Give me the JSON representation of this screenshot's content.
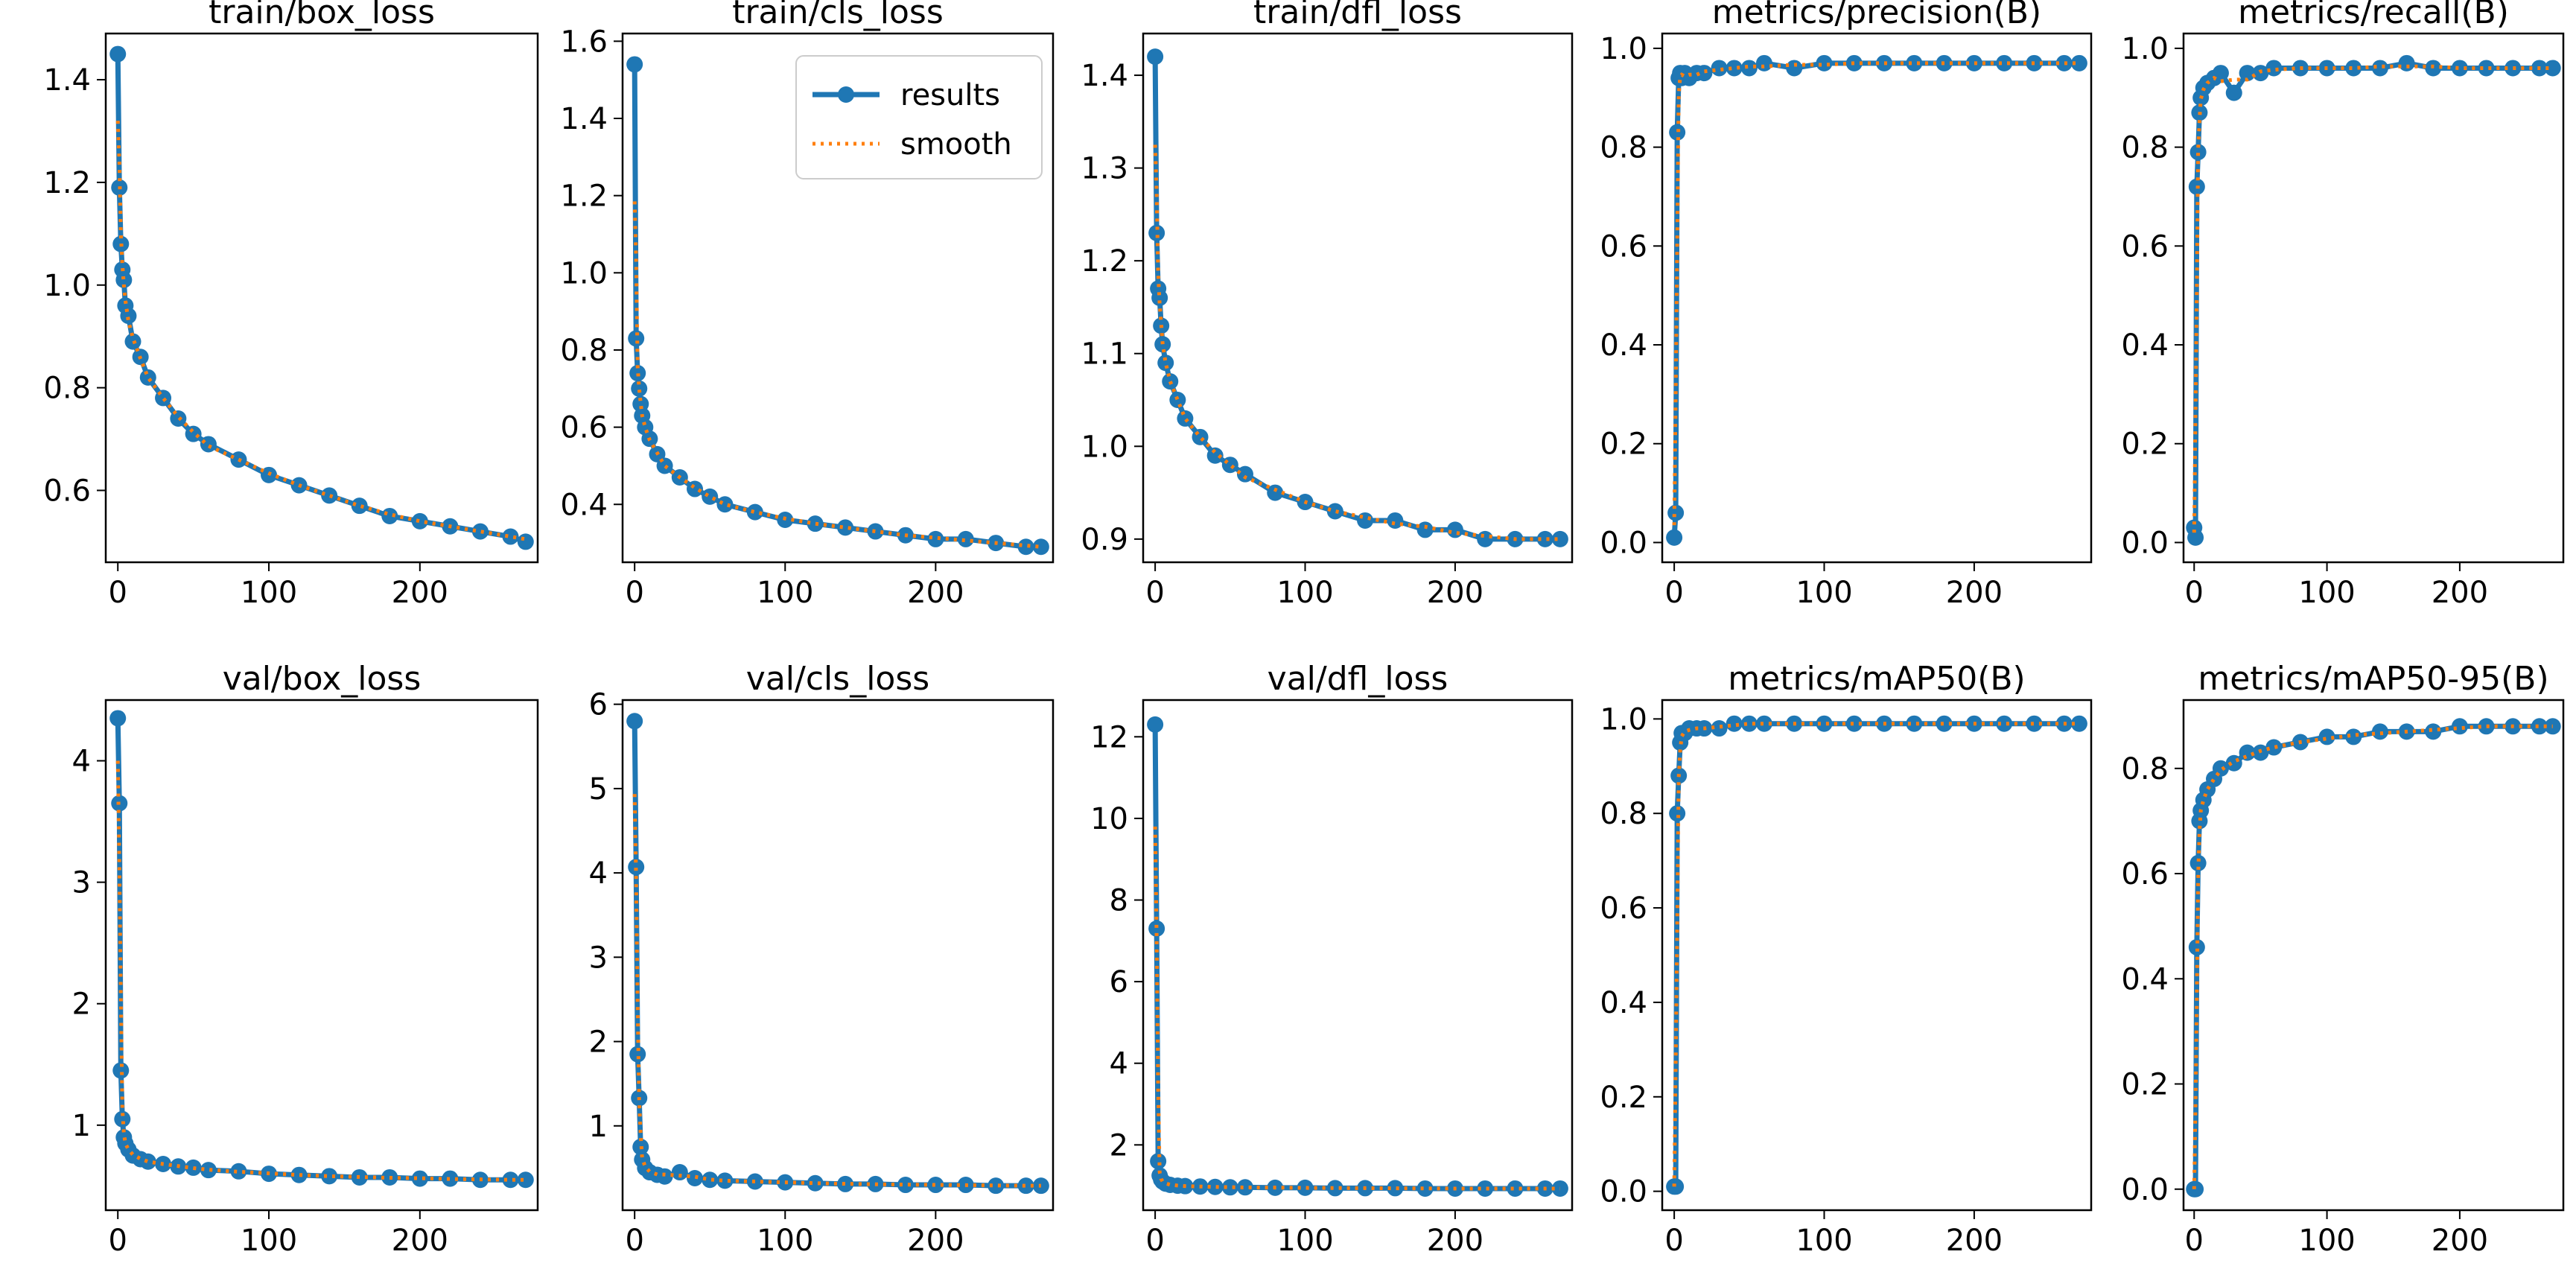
{
  "figure": {
    "rows": 2,
    "cols": 5
  },
  "colors": {
    "results": "#1f77b4",
    "smooth": "#ff7f0e",
    "axes": "#000000",
    "background": "#ffffff"
  },
  "legend": {
    "placement": "top-right",
    "panel_index": 1,
    "entries": [
      {
        "label": "results",
        "style": "solid line with dot markers"
      },
      {
        "label": "smooth",
        "style": "dotted line"
      }
    ]
  },
  "chart_data": [
    {
      "type": "line",
      "title": "train/box_loss",
      "xlabel": "",
      "ylabel": "",
      "xlim": [
        -8,
        278
      ],
      "ylim": [
        0.46,
        1.49
      ],
      "xticks": [
        0,
        100,
        200
      ],
      "yticks": [
        0.6,
        0.8,
        1.0,
        1.2,
        1.4
      ],
      "x": [
        0,
        1,
        2,
        3,
        4,
        5,
        7,
        10,
        15,
        20,
        30,
        40,
        50,
        60,
        80,
        100,
        120,
        140,
        160,
        180,
        200,
        220,
        240,
        260,
        270
      ],
      "series": [
        {
          "name": "results",
          "values": [
            1.45,
            1.19,
            1.08,
            1.03,
            1.01,
            0.96,
            0.94,
            0.89,
            0.86,
            0.82,
            0.78,
            0.74,
            0.71,
            0.69,
            0.66,
            0.63,
            0.61,
            0.59,
            0.57,
            0.55,
            0.54,
            0.53,
            0.52,
            0.51,
            0.5
          ]
        }
      ]
    },
    {
      "type": "line",
      "title": "train/cls_loss",
      "xlabel": "",
      "ylabel": "",
      "xlim": [
        -8,
        278
      ],
      "ylim": [
        0.25,
        1.62
      ],
      "xticks": [
        0,
        100,
        200
      ],
      "yticks": [
        0.4,
        0.6,
        0.8,
        1.0,
        1.2,
        1.4,
        1.6
      ],
      "x": [
        0,
        1,
        2,
        3,
        4,
        5,
        7,
        10,
        15,
        20,
        30,
        40,
        50,
        60,
        80,
        100,
        120,
        140,
        160,
        180,
        200,
        220,
        240,
        260,
        270
      ],
      "series": [
        {
          "name": "results",
          "values": [
            1.54,
            0.83,
            0.74,
            0.7,
            0.66,
            0.63,
            0.6,
            0.57,
            0.53,
            0.5,
            0.47,
            0.44,
            0.42,
            0.4,
            0.38,
            0.36,
            0.35,
            0.34,
            0.33,
            0.32,
            0.31,
            0.31,
            0.3,
            0.29,
            0.29
          ]
        }
      ]
    },
    {
      "type": "line",
      "title": "train/dfl_loss",
      "xlabel": "",
      "ylabel": "",
      "xlim": [
        -8,
        278
      ],
      "ylim": [
        0.875,
        1.445
      ],
      "xticks": [
        0,
        100,
        200
      ],
      "yticks": [
        0.9,
        1.0,
        1.1,
        1.2,
        1.3,
        1.4
      ],
      "x": [
        0,
        1,
        2,
        3,
        4,
        5,
        7,
        10,
        15,
        20,
        30,
        40,
        50,
        60,
        80,
        100,
        120,
        140,
        160,
        180,
        200,
        220,
        240,
        260,
        270
      ],
      "series": [
        {
          "name": "results",
          "values": [
            1.42,
            1.23,
            1.17,
            1.16,
            1.13,
            1.11,
            1.09,
            1.07,
            1.05,
            1.03,
            1.01,
            0.99,
            0.98,
            0.97,
            0.95,
            0.94,
            0.93,
            0.92,
            0.92,
            0.91,
            0.91,
            0.9,
            0.9,
            0.9,
            0.9
          ]
        }
      ]
    },
    {
      "type": "line",
      "title": "metrics/precision(B)",
      "xlabel": "",
      "ylabel": "",
      "xlim": [
        -8,
        278
      ],
      "ylim": [
        -0.04,
        1.03
      ],
      "xticks": [
        0,
        100,
        200
      ],
      "yticks": [
        0.0,
        0.2,
        0.4,
        0.6,
        0.8,
        1.0
      ],
      "x": [
        0,
        1,
        2,
        3,
        4,
        5,
        7,
        10,
        15,
        20,
        30,
        40,
        50,
        60,
        80,
        100,
        120,
        140,
        160,
        180,
        200,
        220,
        240,
        260,
        270
      ],
      "series": [
        {
          "name": "results",
          "values": [
            0.01,
            0.06,
            0.83,
            0.94,
            0.95,
            0.94,
            0.95,
            0.94,
            0.95,
            0.95,
            0.96,
            0.96,
            0.96,
            0.97,
            0.96,
            0.97,
            0.97,
            0.97,
            0.97,
            0.97,
            0.97,
            0.97,
            0.97,
            0.97,
            0.97
          ]
        }
      ]
    },
    {
      "type": "line",
      "title": "metrics/recall(B)",
      "xlabel": "",
      "ylabel": "",
      "xlim": [
        -8,
        278
      ],
      "ylim": [
        -0.04,
        1.03
      ],
      "xticks": [
        0,
        100,
        200
      ],
      "yticks": [
        0.0,
        0.2,
        0.4,
        0.6,
        0.8,
        1.0
      ],
      "x": [
        0,
        1,
        2,
        3,
        4,
        5,
        7,
        10,
        15,
        20,
        30,
        40,
        50,
        60,
        80,
        100,
        120,
        140,
        160,
        180,
        200,
        220,
        240,
        260,
        270
      ],
      "series": [
        {
          "name": "results",
          "values": [
            0.03,
            0.01,
            0.72,
            0.79,
            0.87,
            0.9,
            0.92,
            0.93,
            0.94,
            0.95,
            0.91,
            0.95,
            0.95,
            0.96,
            0.96,
            0.96,
            0.96,
            0.96,
            0.97,
            0.96,
            0.96,
            0.96,
            0.96,
            0.96,
            0.96
          ]
        }
      ]
    },
    {
      "type": "line",
      "title": "val/box_loss",
      "xlabel": "",
      "ylabel": "",
      "xlim": [
        -8,
        278
      ],
      "ylim": [
        0.3,
        4.5
      ],
      "xticks": [
        0,
        100,
        200
      ],
      "yticks": [
        1,
        2,
        3,
        4
      ],
      "x": [
        0,
        1,
        2,
        3,
        4,
        5,
        7,
        10,
        15,
        20,
        30,
        40,
        50,
        60,
        80,
        100,
        120,
        140,
        160,
        180,
        200,
        220,
        240,
        260,
        270
      ],
      "series": [
        {
          "name": "results",
          "values": [
            4.35,
            3.65,
            1.45,
            1.05,
            0.9,
            0.85,
            0.8,
            0.75,
            0.72,
            0.7,
            0.68,
            0.66,
            0.65,
            0.63,
            0.62,
            0.6,
            0.59,
            0.58,
            0.57,
            0.57,
            0.56,
            0.56,
            0.55,
            0.55,
            0.55
          ]
        }
      ]
    },
    {
      "type": "line",
      "title": "val/cls_loss",
      "xlabel": "",
      "ylabel": "",
      "xlim": [
        -8,
        278
      ],
      "ylim": [
        0.0,
        6.05
      ],
      "xticks": [
        0,
        100,
        200
      ],
      "yticks": [
        1,
        2,
        3,
        4,
        5,
        6
      ],
      "x": [
        0,
        1,
        2,
        3,
        4,
        5,
        7,
        10,
        15,
        20,
        30,
        40,
        50,
        60,
        80,
        100,
        120,
        140,
        160,
        180,
        200,
        220,
        240,
        260,
        270
      ],
      "series": [
        {
          "name": "results",
          "values": [
            5.8,
            4.07,
            1.85,
            1.33,
            0.75,
            0.6,
            0.5,
            0.45,
            0.42,
            0.4,
            0.45,
            0.38,
            0.36,
            0.35,
            0.34,
            0.33,
            0.32,
            0.31,
            0.31,
            0.3,
            0.3,
            0.3,
            0.29,
            0.29,
            0.29
          ]
        }
      ]
    },
    {
      "type": "line",
      "title": "val/dfl_loss",
      "xlabel": "",
      "ylabel": "",
      "xlim": [
        -8,
        278
      ],
      "ylim": [
        0.4,
        12.9
      ],
      "xticks": [
        0,
        100,
        200
      ],
      "yticks": [
        2,
        4,
        6,
        8,
        10,
        12
      ],
      "x": [
        0,
        1,
        2,
        3,
        4,
        5,
        7,
        10,
        15,
        20,
        30,
        40,
        50,
        60,
        80,
        100,
        120,
        140,
        160,
        180,
        200,
        220,
        240,
        260,
        270
      ],
      "series": [
        {
          "name": "results",
          "values": [
            12.3,
            7.3,
            1.6,
            1.25,
            1.15,
            1.1,
            1.05,
            1.02,
            1.0,
            0.99,
            0.98,
            0.97,
            0.96,
            0.96,
            0.95,
            0.95,
            0.94,
            0.94,
            0.94,
            0.93,
            0.93,
            0.93,
            0.93,
            0.93,
            0.93
          ]
        }
      ]
    },
    {
      "type": "line",
      "title": "metrics/mAP50(B)",
      "xlabel": "",
      "ylabel": "",
      "xlim": [
        -8,
        278
      ],
      "ylim": [
        -0.04,
        1.04
      ],
      "xticks": [
        0,
        100,
        200
      ],
      "yticks": [
        0.0,
        0.2,
        0.4,
        0.6,
        0.8,
        1.0
      ],
      "x": [
        0,
        1,
        2,
        3,
        4,
        5,
        7,
        10,
        15,
        20,
        30,
        40,
        50,
        60,
        80,
        100,
        120,
        140,
        160,
        180,
        200,
        220,
        240,
        260,
        270
      ],
      "series": [
        {
          "name": "results",
          "values": [
            0.01,
            0.01,
            0.8,
            0.88,
            0.95,
            0.97,
            0.97,
            0.98,
            0.98,
            0.98,
            0.98,
            0.99,
            0.99,
            0.99,
            0.99,
            0.99,
            0.99,
            0.99,
            0.99,
            0.99,
            0.99,
            0.99,
            0.99,
            0.99,
            0.99
          ]
        }
      ]
    },
    {
      "type": "line",
      "title": "metrics/mAP50-95(B)",
      "xlabel": "",
      "ylabel": "",
      "xlim": [
        -8,
        278
      ],
      "ylim": [
        -0.04,
        0.93
      ],
      "xticks": [
        0,
        100,
        200
      ],
      "yticks": [
        0.0,
        0.2,
        0.4,
        0.6,
        0.8
      ],
      "x": [
        0,
        1,
        2,
        3,
        4,
        5,
        7,
        10,
        15,
        20,
        30,
        40,
        50,
        60,
        80,
        100,
        120,
        140,
        160,
        180,
        200,
        220,
        240,
        260,
        270
      ],
      "series": [
        {
          "name": "results",
          "values": [
            0.0,
            0.0,
            0.46,
            0.62,
            0.7,
            0.72,
            0.74,
            0.76,
            0.78,
            0.8,
            0.81,
            0.83,
            0.83,
            0.84,
            0.85,
            0.86,
            0.86,
            0.87,
            0.87,
            0.87,
            0.88,
            0.88,
            0.88,
            0.88,
            0.88
          ]
        }
      ]
    }
  ]
}
